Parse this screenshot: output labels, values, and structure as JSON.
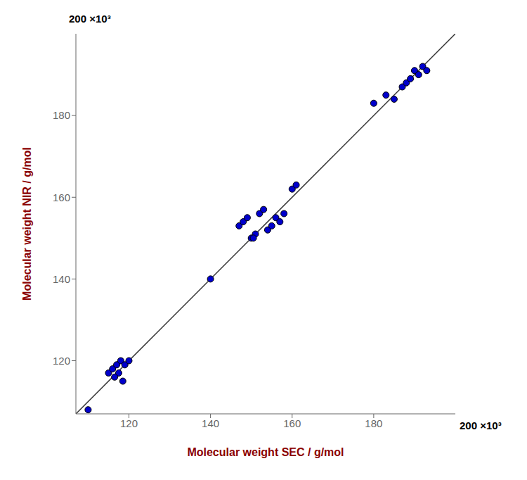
{
  "chart_data": {
    "type": "scatter",
    "x": [
      115000,
      116000,
      117000,
      118000,
      119000,
      120000,
      117500,
      116500,
      118500,
      110000,
      140000,
      147000,
      148000,
      149000,
      150000,
      151000,
      152000,
      153000,
      154000,
      155000,
      156000,
      157000,
      158000,
      150500,
      160000,
      161000,
      180000,
      183000,
      185000,
      187000,
      188000,
      189000,
      190000,
      191000,
      192000,
      193000
    ],
    "values": [
      117000,
      118000,
      119000,
      120000,
      119000,
      120000,
      117000,
      116000,
      115000,
      108000,
      140000,
      153000,
      154000,
      155000,
      150000,
      151000,
      156000,
      157000,
      152000,
      153000,
      155000,
      154000,
      156000,
      150000,
      162000,
      163000,
      183000,
      185000,
      184000,
      187000,
      188000,
      189000,
      191000,
      190000,
      192000,
      191000
    ],
    "color": "#0000CC",
    "xlabel": "Molecular weight SEC /  g/mol",
    "ylabel": "Molecular weight NIR / g/mol",
    "xlim": [
      107000,
      200000
    ],
    "ylim": [
      107000,
      200000
    ],
    "xticks": [
      {
        "value": 120000,
        "label": "120"
      },
      {
        "value": 140000,
        "label": "140"
      },
      {
        "value": 160000,
        "label": "160"
      },
      {
        "value": 180000,
        "label": "180"
      }
    ],
    "yticks": [
      {
        "value": 120000,
        "label": "120"
      },
      {
        "value": 140000,
        "label": "140"
      },
      {
        "value": 160000,
        "label": "160"
      },
      {
        "value": 180000,
        "label": "180"
      }
    ],
    "annotations": [
      "200 ×10³",
      "200 ×10³"
    ],
    "grid": false
  }
}
